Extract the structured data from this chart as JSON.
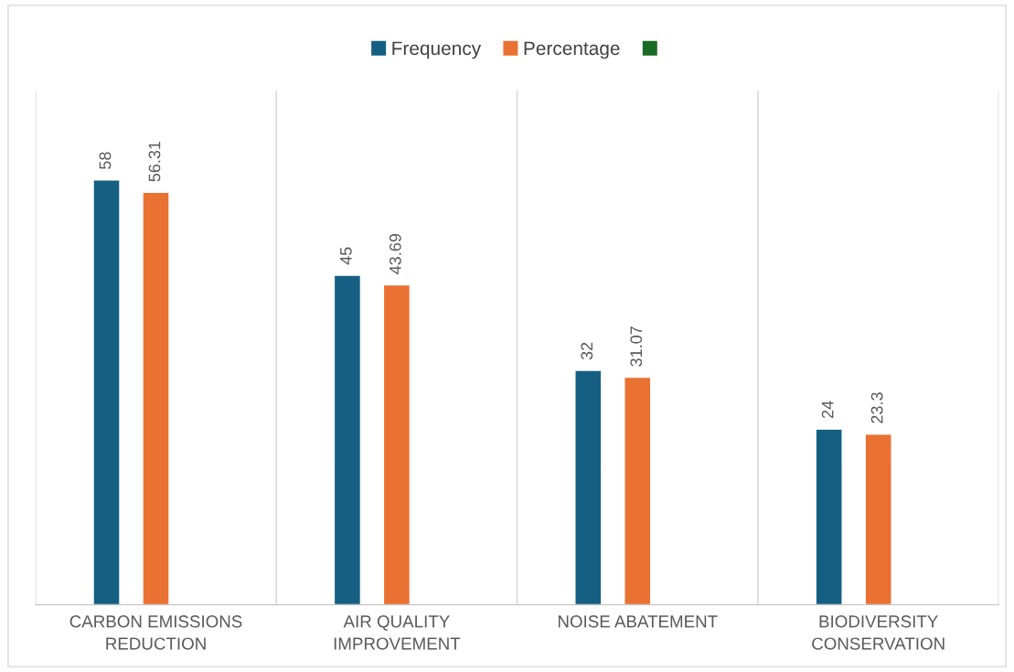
{
  "chart_data": {
    "type": "bar",
    "categories": [
      "CARBON EMISSIONS\nREDUCTION",
      "AIR QUALITY\nIMPROVEMENT",
      "NOISE ABATEMENT",
      "BIODIVERSITY\nCONSERVATION"
    ],
    "series": [
      {
        "name": "Frequency",
        "color": "#156082",
        "values": [
          58,
          45,
          32,
          24
        ]
      },
      {
        "name": "Percentage",
        "color": "#e97132",
        "values": [
          56.31,
          43.69,
          31.07,
          23.3
        ]
      },
      {
        "color": "#196b24",
        "values": [
          null,
          null,
          null,
          null
        ]
      }
    ],
    "data_labels": true,
    "grid": "x",
    "legend": "top",
    "tick_labels": "x"
  }
}
